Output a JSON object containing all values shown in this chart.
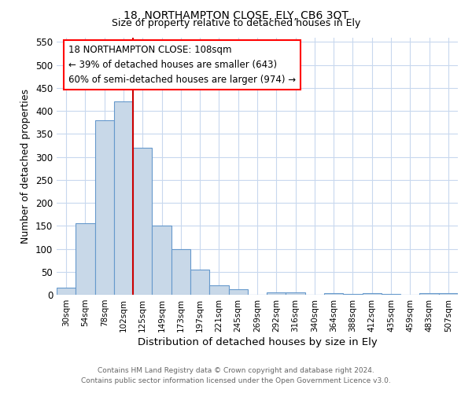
{
  "title1": "18, NORTHAMPTON CLOSE, ELY, CB6 3QT",
  "title2": "Size of property relative to detached houses in Ely",
  "xlabel": "Distribution of detached houses by size in Ely",
  "ylabel": "Number of detached properties",
  "categories": [
    "30sqm",
    "54sqm",
    "78sqm",
    "102sqm",
    "125sqm",
    "149sqm",
    "173sqm",
    "197sqm",
    "221sqm",
    "245sqm",
    "269sqm",
    "292sqm",
    "316sqm",
    "340sqm",
    "364sqm",
    "388sqm",
    "412sqm",
    "435sqm",
    "459sqm",
    "483sqm",
    "507sqm"
  ],
  "values": [
    15,
    155,
    380,
    420,
    320,
    150,
    100,
    55,
    20,
    12,
    0,
    5,
    5,
    0,
    4,
    2,
    4,
    2,
    0,
    4,
    4
  ],
  "bar_color": "#c8d8e8",
  "bar_edgecolor": "#6699cc",
  "bar_linewidth": 0.8,
  "vline_x": 3.5,
  "vline_color": "#cc0000",
  "ylim": [
    0,
    560
  ],
  "yticks": [
    0,
    50,
    100,
    150,
    200,
    250,
    300,
    350,
    400,
    450,
    500,
    550
  ],
  "annotation_line1": "18 NORTHAMPTON CLOSE: 108sqm",
  "annotation_line2": "← 39% of detached houses are smaller (643)",
  "annotation_line3": "60% of semi-detached houses are larger (974) →",
  "footer1": "Contains HM Land Registry data © Crown copyright and database right 2024.",
  "footer2": "Contains public sector information licensed under the Open Government Licence v3.0.",
  "bg_color": "#ffffff",
  "grid_color": "#c8d8ee"
}
